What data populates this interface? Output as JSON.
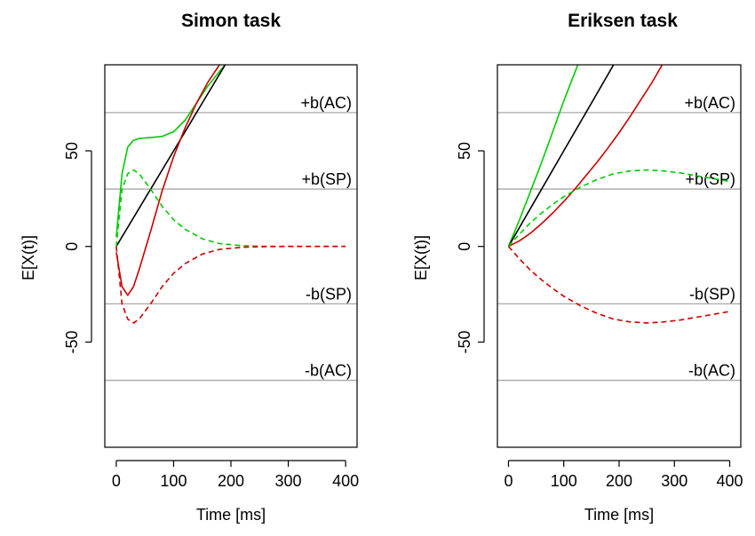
{
  "chart_data": [
    {
      "type": "line",
      "title": "Simon task",
      "xlabel": "Time [ms]",
      "ylabel": "E[X(t)]",
      "xlim": [
        -20,
        420
      ],
      "ylim": [
        -105,
        95
      ],
      "xticks": [
        0,
        100,
        200,
        300,
        400
      ],
      "yticks": [
        -50,
        0,
        50
      ],
      "grid": false,
      "bounds": [
        {
          "label": "+b(AC)",
          "value": 70
        },
        {
          "label": "+b(SP)",
          "value": 30
        },
        {
          "label": "-b(SP)",
          "value": -30
        },
        {
          "label": "-b(AC)",
          "value": -70
        }
      ],
      "series": [
        {
          "color": "#00cc00",
          "style": "solid",
          "x": [
            0,
            10,
            20,
            30,
            40,
            60,
            80,
            100,
            120,
            140,
            160,
            180,
            200
          ],
          "y": [
            5,
            38,
            52,
            55.5,
            56.5,
            57,
            57.5,
            60,
            66,
            75,
            84,
            91.5,
            98.5
          ]
        },
        {
          "color": "#000000",
          "style": "solid",
          "x": [
            0,
            50,
            100,
            150,
            200
          ],
          "y": [
            0,
            25,
            50,
            75,
            100
          ]
        },
        {
          "color": "#cc0000",
          "style": "solid",
          "x": [
            0,
            10,
            20,
            30,
            40,
            60,
            80,
            100,
            120,
            140,
            160,
            180,
            200
          ],
          "y": [
            -3,
            -21,
            -25.5,
            -21,
            -12,
            8,
            29,
            47,
            62,
            75,
            86,
            95,
            101
          ]
        },
        {
          "color": "#00cc00",
          "style": "dashed",
          "x": [
            0,
            10,
            20,
            30,
            40,
            60,
            80,
            100,
            120,
            150,
            180,
            220,
            260,
            300,
            400
          ],
          "y": [
            0,
            30,
            38,
            40,
            38,
            30,
            21,
            14,
            9,
            4,
            1.5,
            0.4,
            0.1,
            0,
            0
          ]
        },
        {
          "color": "#cc0000",
          "style": "dashed",
          "x": [
            0,
            10,
            20,
            30,
            40,
            60,
            80,
            100,
            120,
            150,
            180,
            220,
            260,
            300,
            400
          ],
          "y": [
            0,
            -30,
            -38,
            -40,
            -38,
            -30,
            -21,
            -14,
            -9,
            -4,
            -1.5,
            -0.4,
            -0.1,
            0,
            0
          ]
        }
      ]
    },
    {
      "type": "line",
      "title": "Eriksen task",
      "xlabel": "Time [ms]",
      "ylabel": "E[X(t)]",
      "xlim": [
        -20,
        420
      ],
      "ylim": [
        -105,
        95
      ],
      "xticks": [
        0,
        100,
        200,
        300,
        400
      ],
      "yticks": [
        -50,
        0,
        50
      ],
      "grid": false,
      "bounds": [
        {
          "label": "+b(AC)",
          "value": 70
        },
        {
          "label": "+b(SP)",
          "value": 30
        },
        {
          "label": "-b(SP)",
          "value": -30
        },
        {
          "label": "-b(AC)",
          "value": -70
        }
      ],
      "series": [
        {
          "color": "#00cc00",
          "style": "solid",
          "x": [
            0,
            20,
            40,
            60,
            80,
            100,
            120,
            140
          ],
          "y": [
            0,
            14,
            29,
            44,
            60,
            76,
            91,
            106
          ]
        },
        {
          "color": "#000000",
          "style": "solid",
          "x": [
            0,
            50,
            100,
            150,
            200,
            210
          ],
          "y": [
            0,
            25,
            50,
            75,
            100,
            105
          ]
        },
        {
          "color": "#cc0000",
          "style": "solid",
          "x": [
            0,
            20,
            40,
            60,
            80,
            100,
            120,
            140,
            160,
            180,
            200,
            220,
            240,
            260,
            280
          ],
          "y": [
            0,
            3,
            7,
            12,
            17.5,
            23.5,
            30,
            37,
            44,
            51.5,
            59.5,
            68,
            77,
            86,
            96
          ]
        },
        {
          "color": "#00cc00",
          "style": "dashed",
          "x": [
            0,
            20,
            40,
            60,
            80,
            100,
            130,
            160,
            190,
            220,
            250,
            280,
            310,
            340,
            370,
            400
          ],
          "y": [
            0,
            6.5,
            12.5,
            17.5,
            22,
            26,
            31,
            35,
            38,
            39.5,
            40,
            39.5,
            38.5,
            37,
            35.5,
            34
          ]
        },
        {
          "color": "#cc0000",
          "style": "dashed",
          "x": [
            0,
            20,
            40,
            60,
            80,
            100,
            130,
            160,
            190,
            220,
            250,
            280,
            310,
            340,
            370,
            400
          ],
          "y": [
            0,
            -6.5,
            -12.5,
            -17.5,
            -22,
            -26,
            -31,
            -35,
            -38,
            -39.5,
            -40,
            -39.5,
            -38.5,
            -37,
            -35.5,
            -34
          ]
        }
      ]
    }
  ]
}
